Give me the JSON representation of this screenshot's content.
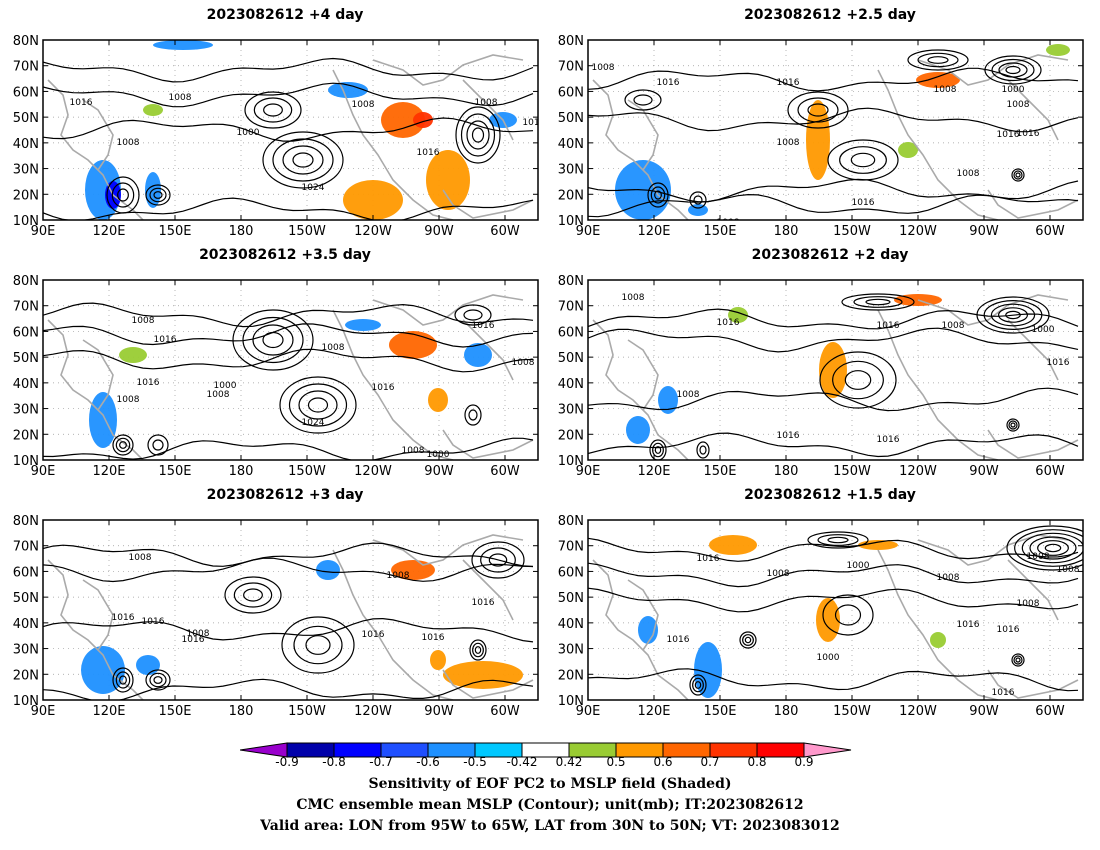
{
  "panels": [
    {
      "title": "2023082612 +4 day",
      "labels": [
        "1016",
        "1008",
        "1008",
        "1000",
        "1008",
        "1024",
        "1016",
        "1008",
        "101"
      ]
    },
    {
      "title": "2023082612 +2.5 day",
      "labels": [
        "1008",
        "1016",
        "1016",
        "1008",
        "1008",
        "1000",
        "1008",
        "1016",
        "1016",
        "1008",
        "1016",
        "1008"
      ]
    },
    {
      "title": "2023082612 +3.5 day",
      "labels": [
        "1008",
        "1016",
        "1016",
        "1008",
        "1000",
        "1008",
        "1016",
        "1024",
        "1008",
        "1000",
        "1016",
        "1008",
        "1008"
      ]
    },
    {
      "title": "2023082612 +2 day",
      "labels": [
        "1008",
        "1016",
        "1016",
        "1008",
        "1000",
        "1016",
        "1008",
        "1016",
        "1016"
      ]
    },
    {
      "title": "2023082612 +3 day",
      "labels": [
        "1008",
        "1016",
        "1016",
        "1008",
        "1008",
        "1016",
        "1016",
        "1016",
        "1016"
      ]
    },
    {
      "title": "2023082612 +1.5 day",
      "labels": [
        "1016",
        "1008",
        "1008",
        "1000",
        "1008",
        "1016",
        "1000",
        "1016",
        "1016",
        "1008",
        "1016",
        "1016",
        "1008"
      ]
    }
  ],
  "axes": {
    "lon_labels": [
      "90E",
      "120E",
      "150E",
      "180",
      "150W",
      "120W",
      "90W",
      "60W"
    ],
    "lat_labels": [
      "80N",
      "70N",
      "60N",
      "50N",
      "40N",
      "30N",
      "20N",
      "10N"
    ]
  },
  "colorbar": {
    "labels": [
      "-0.9",
      "-0.8",
      "-0.7",
      "-0.6",
      "-0.5",
      "-0.42",
      "0.42",
      "0.5",
      "0.6",
      "0.7",
      "0.8",
      "0.9"
    ],
    "colors": [
      "#9900cc",
      "#0000aa",
      "#0000ff",
      "#1f4fff",
      "#1e90ff",
      "#00c8ff",
      "#ffffff",
      "#99cc33",
      "#ff9900",
      "#ff6600",
      "#ff3300",
      "#ff0000",
      "#ff99cc"
    ]
  },
  "caption": {
    "line1": "Sensitivity of EOF PC2 to MSLP field (Shaded)",
    "line2": "CMC ensemble mean MSLP (Contour); unit(mb); IT:2023082612",
    "line3": "Valid area: LON from 95W to 65W, LAT from 30N to 50N; VT: 2023083012"
  }
}
